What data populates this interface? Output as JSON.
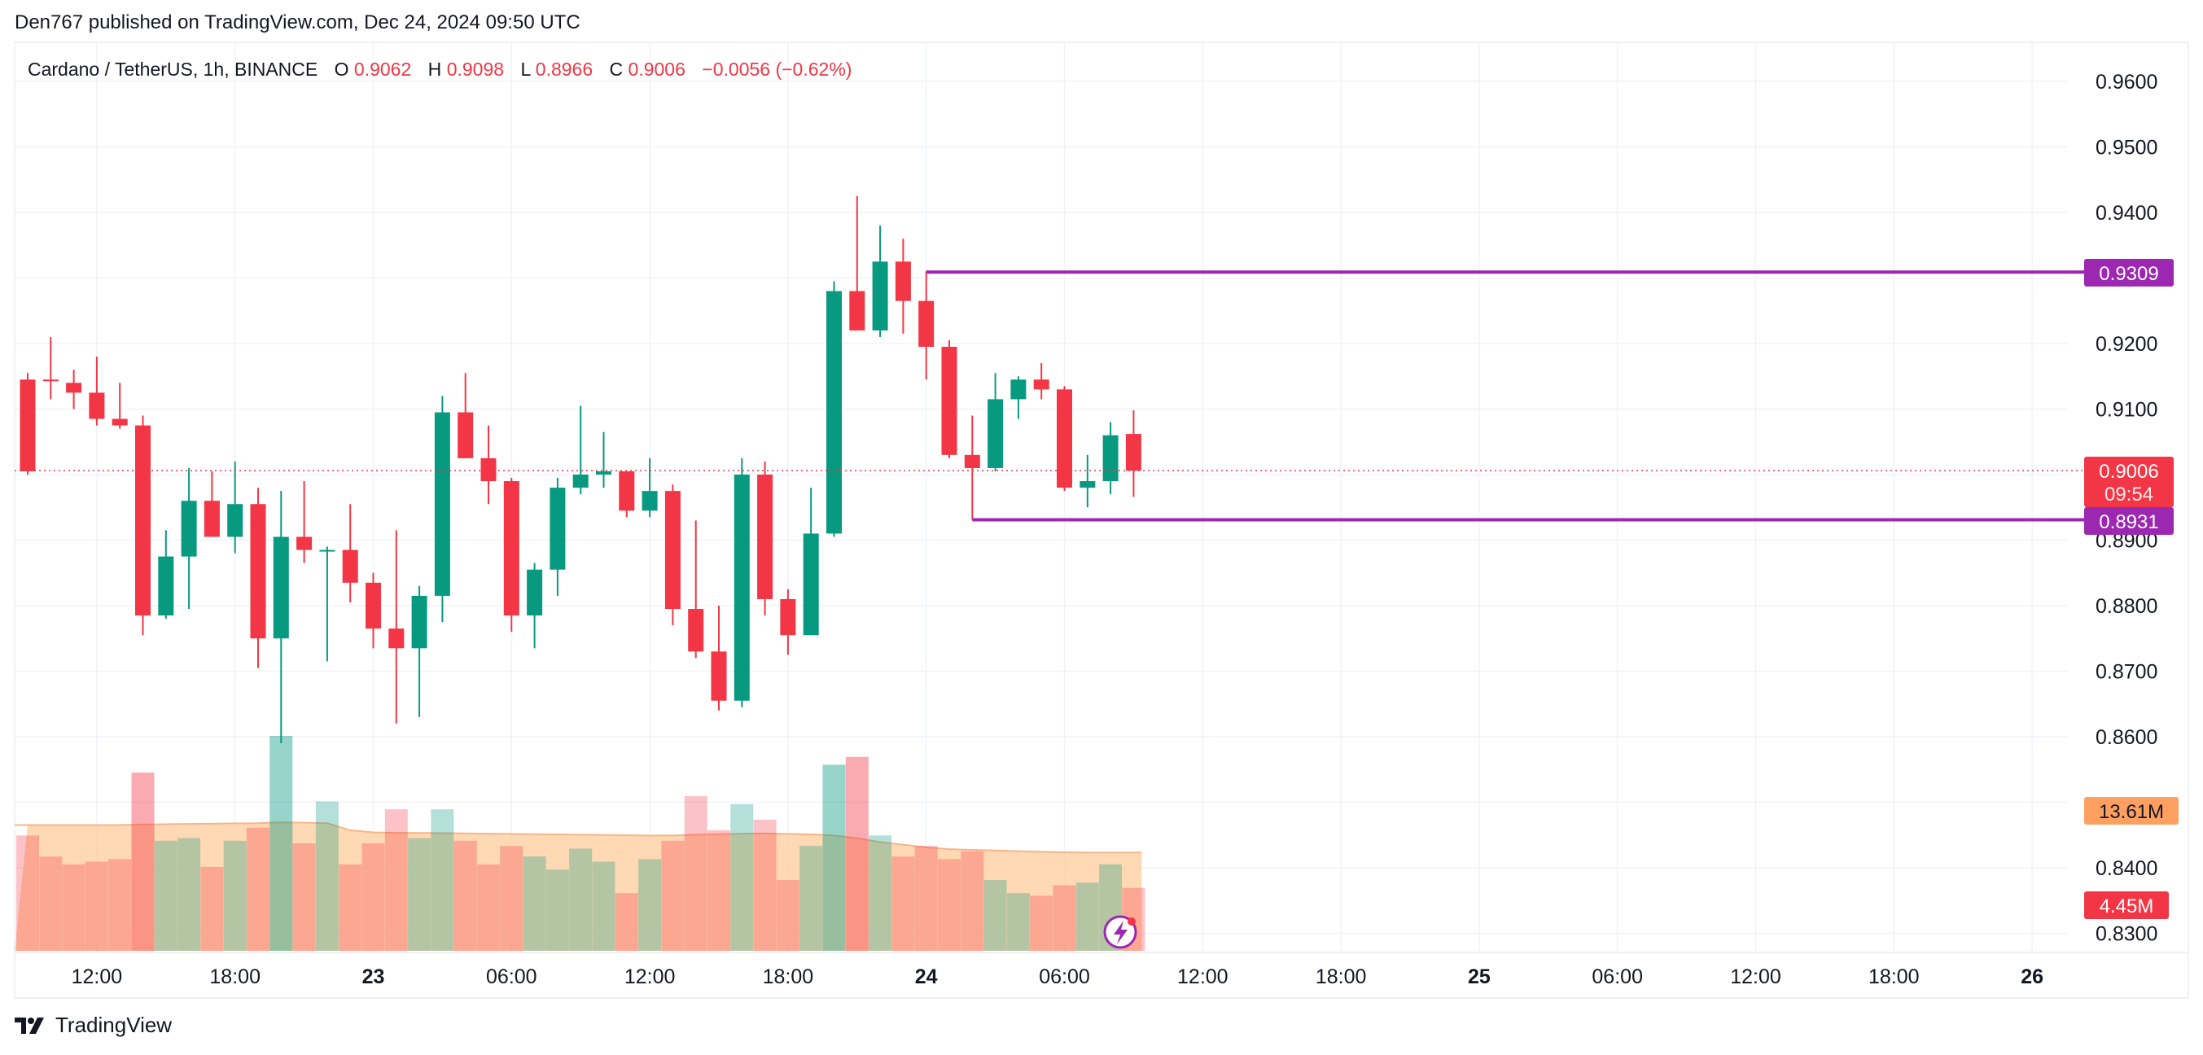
{
  "publisher_line": "Den767 published on TradingView.com, Dec 24, 2024 09:50 UTC",
  "brand": {
    "name": "TradingView",
    "icon": "tradingview-logo-icon"
  },
  "legend": {
    "symbol": "Cardano / TetherUS, 1h, BINANCE",
    "o_label": "O",
    "o": "0.9062",
    "h_label": "H",
    "h": "0.9098",
    "l_label": "L",
    "l": "0.8966",
    "c_label": "C",
    "c": "0.9006",
    "change": "−0.0056 (−0.62%)"
  },
  "price_tags": {
    "resistance": "0.9309",
    "current": "0.9006",
    "countdown": "09:54",
    "support": "0.8931",
    "volume_ma": "13.61M",
    "volume_last": "4.45M"
  },
  "colors": {
    "up": "#089981",
    "down": "#f23645",
    "level_line": "#9c27b0",
    "volume_ma_fill": "#ffcc99",
    "volume_ma_line": "#f7b58a",
    "volume_ma_tag": "#ffa060",
    "grid": "#f0f3fa",
    "text": "#131722"
  },
  "chart_data": {
    "type": "candlestick",
    "symbol": "Cardano / TetherUS",
    "interval": "1h",
    "exchange": "BINANCE",
    "y_axis": {
      "range": [
        0.827,
        0.9625
      ],
      "ticks": [
        "0.9600",
        "0.9500",
        "0.9400",
        "0.9300",
        "0.9200",
        "0.9100",
        "0.9000",
        "0.8900",
        "0.8800",
        "0.8700",
        "0.8600",
        "0.8500",
        "0.8400",
        "0.8300"
      ],
      "hidden_ticks": [
        "0.9300",
        "0.9000",
        "0.8500"
      ]
    },
    "x_axis": {
      "ticks": [
        {
          "i": 3,
          "label": "12:00",
          "bold": false
        },
        {
          "i": 9,
          "label": "18:00",
          "bold": false
        },
        {
          "i": 15,
          "label": "23",
          "bold": true
        },
        {
          "i": 21,
          "label": "06:00",
          "bold": false
        },
        {
          "i": 27,
          "label": "12:00",
          "bold": false
        },
        {
          "i": 33,
          "label": "18:00",
          "bold": false
        },
        {
          "i": 39,
          "label": "24",
          "bold": true
        },
        {
          "i": 45,
          "label": "06:00",
          "bold": false
        },
        {
          "i": 51,
          "label": "12:00",
          "bold": false
        },
        {
          "i": 57,
          "label": "18:00",
          "bold": false
        },
        {
          "i": 63,
          "label": "25",
          "bold": true
        },
        {
          "i": 69,
          "label": "06:00",
          "bold": false
        },
        {
          "i": 75,
          "label": "12:00",
          "bold": false
        },
        {
          "i": 81,
          "label": "18:00",
          "bold": false
        },
        {
          "i": 87,
          "label": "26",
          "bold": true
        }
      ]
    },
    "candles": [
      [
        0.9145,
        0.9155,
        0.9,
        0.9005
      ],
      [
        0.9145,
        0.921,
        0.9115,
        0.9143
      ],
      [
        0.914,
        0.916,
        0.91,
        0.9125
      ],
      [
        0.9125,
        0.918,
        0.9075,
        0.9085
      ],
      [
        0.9085,
        0.914,
        0.907,
        0.9075
      ],
      [
        0.9075,
        0.909,
        0.8755,
        0.8785
      ],
      [
        0.8785,
        0.8915,
        0.878,
        0.8875
      ],
      [
        0.8875,
        0.901,
        0.8795,
        0.896
      ],
      [
        0.896,
        0.9005,
        0.8915,
        0.8905
      ],
      [
        0.8905,
        0.902,
        0.888,
        0.8955
      ],
      [
        0.8955,
        0.898,
        0.8705,
        0.875
      ],
      [
        0.875,
        0.8975,
        0.859,
        0.8905
      ],
      [
        0.8905,
        0.899,
        0.8865,
        0.8885
      ],
      [
        0.8885,
        0.889,
        0.8715,
        0.8885
      ],
      [
        0.8885,
        0.8955,
        0.8805,
        0.8835
      ],
      [
        0.8835,
        0.885,
        0.8735,
        0.8765
      ],
      [
        0.8765,
        0.8915,
        0.862,
        0.8735
      ],
      [
        0.8735,
        0.883,
        0.863,
        0.8815
      ],
      [
        0.8815,
        0.912,
        0.8775,
        0.9095
      ],
      [
        0.9095,
        0.9155,
        0.9025,
        0.9025
      ],
      [
        0.9025,
        0.9075,
        0.8955,
        0.899
      ],
      [
        0.899,
        0.8995,
        0.876,
        0.8785
      ],
      [
        0.8785,
        0.8865,
        0.8735,
        0.8855
      ],
      [
        0.8855,
        0.8995,
        0.8815,
        0.898
      ],
      [
        0.898,
        0.9105,
        0.897,
        0.9
      ],
      [
        0.9,
        0.9065,
        0.898,
        0.9005
      ],
      [
        0.9005,
        0.9005,
        0.8935,
        0.8945
      ],
      [
        0.8945,
        0.9025,
        0.8935,
        0.8975
      ],
      [
        0.8975,
        0.8985,
        0.877,
        0.8795
      ],
      [
        0.8795,
        0.893,
        0.872,
        0.873
      ],
      [
        0.873,
        0.88,
        0.864,
        0.8655
      ],
      [
        0.8655,
        0.9025,
        0.8645,
        0.9
      ],
      [
        0.9,
        0.902,
        0.8785,
        0.881
      ],
      [
        0.881,
        0.8825,
        0.8725,
        0.8755
      ],
      [
        0.8755,
        0.898,
        0.8755,
        0.891
      ],
      [
        0.891,
        0.9295,
        0.8905,
        0.928
      ],
      [
        0.928,
        0.9425,
        0.922,
        0.922
      ],
      [
        0.922,
        0.938,
        0.921,
        0.9325
      ],
      [
        0.9325,
        0.936,
        0.9215,
        0.9265
      ],
      [
        0.9265,
        0.931,
        0.9145,
        0.9195
      ],
      [
        0.9195,
        0.9205,
        0.9025,
        0.903
      ],
      [
        0.903,
        0.909,
        0.8931,
        0.901
      ],
      [
        0.901,
        0.9155,
        0.9005,
        0.9115
      ],
      [
        0.9115,
        0.915,
        0.9085,
        0.9145
      ],
      [
        0.9145,
        0.917,
        0.9115,
        0.913
      ],
      [
        0.913,
        0.9135,
        0.8975,
        0.898
      ],
      [
        0.898,
        0.903,
        0.895,
        0.899
      ],
      [
        0.899,
        0.908,
        0.897,
        0.906
      ],
      [
        0.9062,
        0.9098,
        0.8966,
        0.9006
      ]
    ],
    "volume": {
      "values": [
        0.44,
        0.36,
        0.33,
        0.34,
        0.35,
        0.68,
        0.42,
        0.43,
        0.32,
        0.42,
        0.47,
        0.82,
        0.41,
        0.57,
        0.33,
        0.41,
        0.54,
        0.43,
        0.54,
        0.42,
        0.33,
        0.4,
        0.36,
        0.31,
        0.39,
        0.34,
        0.22,
        0.35,
        0.42,
        0.59,
        0.46,
        0.56,
        0.5,
        0.27,
        0.4,
        0.71,
        0.74,
        0.44,
        0.36,
        0.4,
        0.35,
        0.38,
        0.27,
        0.22,
        0.21,
        0.25,
        0.26,
        0.33,
        0.24
      ],
      "unit": "relative",
      "moving_average": [
        0.48,
        0.48,
        0.48,
        0.48,
        0.48,
        0.482,
        0.483,
        0.484,
        0.485,
        0.486,
        0.487,
        0.49,
        0.489,
        0.487,
        0.46,
        0.452,
        0.45,
        0.45,
        0.449,
        0.448,
        0.447,
        0.446,
        0.445,
        0.444,
        0.443,
        0.442,
        0.441,
        0.44,
        0.44,
        0.443,
        0.445,
        0.447,
        0.448,
        0.446,
        0.444,
        0.44,
        0.43,
        0.415,
        0.405,
        0.395,
        0.388,
        0.385,
        0.383,
        0.38,
        0.378,
        0.376,
        0.375,
        0.375,
        0.375
      ],
      "highlighted_bars": [
        5,
        11,
        35,
        36
      ],
      "ma_label": "13.61M",
      "last_label": "4.45M"
    },
    "horizontal_levels": [
      {
        "price": 0.9309,
        "start_index": 39,
        "label": "0.9309"
      },
      {
        "price": 0.8931,
        "start_index": 41,
        "label": "0.8931"
      }
    ],
    "last_price_line": 0.9006
  }
}
